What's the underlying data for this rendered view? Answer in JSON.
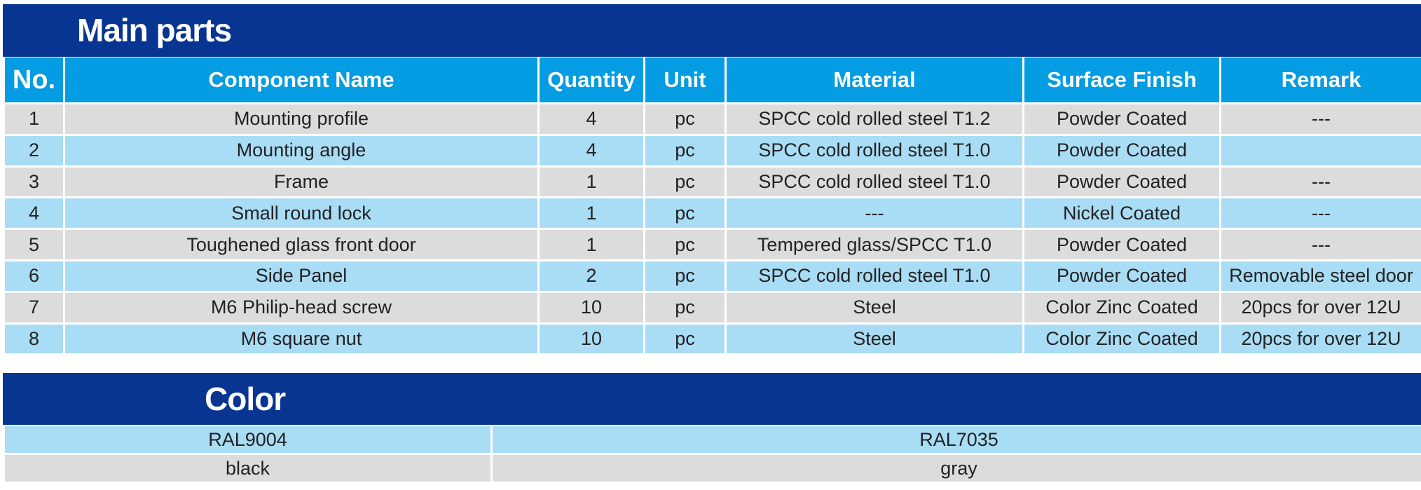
{
  "main_section": {
    "title": "Main parts",
    "headers": [
      "No.",
      "Component Name",
      "Quantity",
      "Unit",
      "Material",
      "Surface Finish",
      "Remark"
    ],
    "rows": [
      [
        "1",
        "Mounting profile",
        "4",
        "pc",
        "SPCC cold rolled steel T1.2",
        "Powder Coated",
        "---"
      ],
      [
        "2",
        "Mounting angle",
        "4",
        "pc",
        "SPCC cold rolled steel T1.0",
        "Powder Coated",
        ""
      ],
      [
        "3",
        "Frame",
        "1",
        "pc",
        "SPCC cold rolled steel T1.0",
        "Powder Coated",
        "---"
      ],
      [
        "4",
        "Small round lock",
        "1",
        "pc",
        "---",
        "Nickel Coated",
        "---"
      ],
      [
        "5",
        "Toughened glass front door",
        "1",
        "pc",
        "Tempered glass/SPCC T1.0",
        "Powder Coated",
        "---"
      ],
      [
        "6",
        "Side Panel",
        "2",
        "pc",
        "SPCC cold rolled steel T1.0",
        "Powder Coated",
        "Removable steel door"
      ],
      [
        "7",
        "M6 Philip-head screw",
        "10",
        "pc",
        "Steel",
        "Color Zinc Coated",
        "20pcs for over 12U"
      ],
      [
        "8",
        "M6 square nut",
        "10",
        "pc",
        "Steel",
        "Color Zinc Coated",
        "20pcs for over 12U"
      ]
    ]
  },
  "color_section": {
    "title": "Color",
    "codes": [
      "RAL9004",
      "RAL7035"
    ],
    "names": [
      "black",
      "gray"
    ]
  },
  "colors": {
    "title_bar": "#073591",
    "header_bg": "#049ce2",
    "row_gray": "#dcdcdc",
    "row_blue": "#a9dcf5"
  }
}
